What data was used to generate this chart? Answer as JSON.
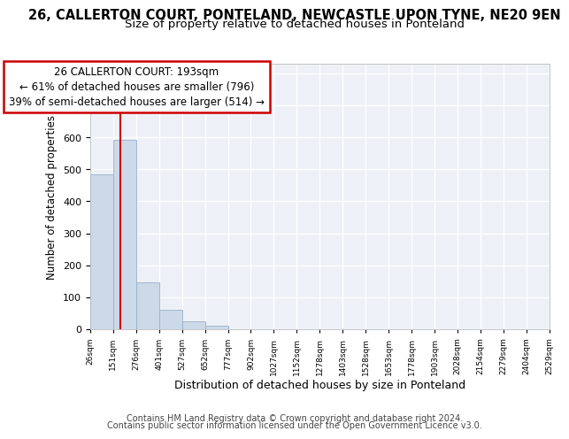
{
  "title1": "26, CALLERTON COURT, PONTELAND, NEWCASTLE UPON TYNE, NE20 9EN",
  "title2": "Size of property relative to detached houses in Ponteland",
  "xlabel": "Distribution of detached houses by size in Ponteland",
  "ylabel": "Number of detached properties",
  "bar_edges": [
    26,
    151,
    276,
    401,
    527,
    652,
    777,
    902,
    1027,
    1152,
    1278,
    1403,
    1528,
    1653,
    1778,
    1903,
    2028,
    2154,
    2279,
    2404,
    2529
  ],
  "bar_heights": [
    484,
    591,
    148,
    61,
    26,
    10,
    0,
    0,
    0,
    0,
    0,
    0,
    0,
    0,
    0,
    0,
    0,
    0,
    0,
    0
  ],
  "bar_color": "#ccd9e8",
  "bar_edgecolor": "#9ab0c8",
  "property_line_x": 193,
  "property_line_color": "#cc0000",
  "annotation_line1": "26 CALLERTON COURT: 193sqm",
  "annotation_line2": "← 61% of detached houses are smaller (796)",
  "annotation_line3": "39% of semi-detached houses are larger (514) →",
  "annotation_box_color": "#cc0000",
  "ylim": [
    0,
    830
  ],
  "yticks": [
    0,
    100,
    200,
    300,
    400,
    500,
    600,
    700,
    800
  ],
  "tick_labels": [
    "26sqm",
    "151sqm",
    "276sqm",
    "401sqm",
    "527sqm",
    "652sqm",
    "777sqm",
    "902sqm",
    "1027sqm",
    "1152sqm",
    "1278sqm",
    "1403sqm",
    "1528sqm",
    "1653sqm",
    "1778sqm",
    "1903sqm",
    "2028sqm",
    "2154sqm",
    "2279sqm",
    "2404sqm",
    "2529sqm"
  ],
  "footer1": "Contains HM Land Registry data © Crown copyright and database right 2024.",
  "footer2": "Contains public sector information licensed under the Open Government Licence v3.0.",
  "background_color": "#edf1f7",
  "grid_color": "#ffffff",
  "title1_fontsize": 10.5,
  "title2_fontsize": 9.5,
  "ylabel_fontsize": 8.5,
  "xlabel_fontsize": 9,
  "footer_fontsize": 7,
  "ann_fontsize": 8.5
}
